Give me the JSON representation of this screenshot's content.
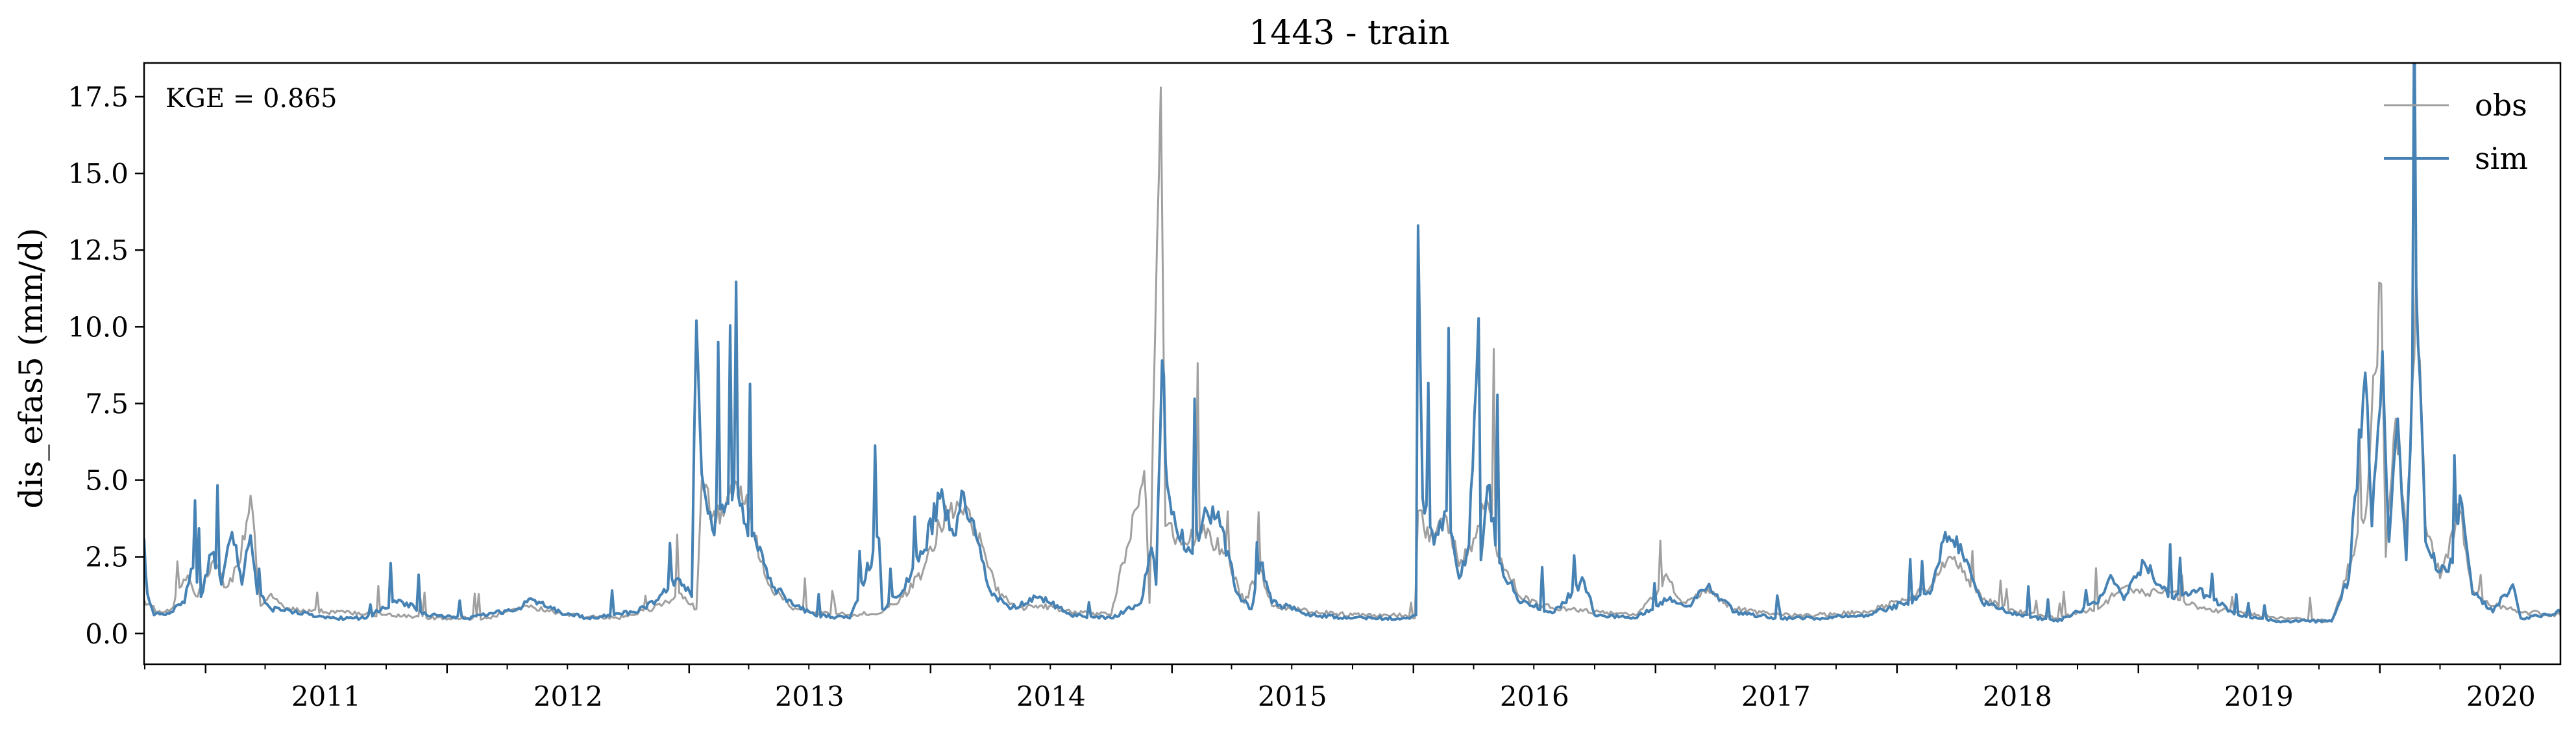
{
  "chart_data": {
    "type": "line",
    "title": "1443 - train",
    "xlabel": "",
    "ylabel": "dis_efas5 (mm/d)",
    "xlim": [
      "2010-09-30",
      "2020-09-30"
    ],
    "ylim": [
      -1.0,
      18.6
    ],
    "yticks": [
      "0.0",
      "2.5",
      "5.0",
      "7.5",
      "10.0",
      "12.5",
      "15.0",
      "17.5"
    ],
    "xticks": [
      "2011",
      "2012",
      "2013",
      "2014",
      "2015",
      "2016",
      "2017",
      "2018",
      "2019",
      "2020"
    ],
    "grid": false,
    "legend_position": "top-right",
    "annotation": "KGE = 0.865",
    "series": [
      {
        "name": "obs",
        "color": "#a0a0a0",
        "points": [
          [
            "2010-09-30",
            1.1
          ],
          [
            "2010-10-20",
            0.7
          ],
          [
            "2010-11-10",
            0.8
          ],
          [
            "2010-12-05",
            1.9
          ],
          [
            "2010-12-20",
            1.2
          ],
          [
            "2011-01-10",
            2.3
          ],
          [
            "2011-02-01",
            1.5
          ],
          [
            "2011-02-20",
            2.2
          ],
          [
            "2011-03-10",
            4.5
          ],
          [
            "2011-03-25",
            0.9
          ],
          [
            "2011-04-10",
            1.3
          ],
          [
            "2011-05-01",
            0.8
          ],
          [
            "2011-07-01",
            0.7
          ],
          [
            "2011-10-01",
            0.6
          ],
          [
            "2011-12-01",
            0.5
          ],
          [
            "2012-03-01",
            0.5
          ],
          [
            "2012-05-01",
            0.9
          ],
          [
            "2012-07-01",
            0.6
          ],
          [
            "2012-09-15",
            0.5
          ],
          [
            "2012-11-20",
            0.9
          ],
          [
            "2012-12-20",
            1.3
          ],
          [
            "2013-01-12",
            0.8
          ],
          [
            "2013-01-20",
            5.0
          ],
          [
            "2013-02-05",
            3.8
          ],
          [
            "2013-02-25",
            4.1
          ],
          [
            "2013-03-20",
            4.8
          ],
          [
            "2013-04-10",
            3.2
          ],
          [
            "2013-05-01",
            1.6
          ],
          [
            "2013-06-01",
            0.9
          ],
          [
            "2013-07-01",
            0.7
          ],
          [
            "2013-09-01",
            0.6
          ],
          [
            "2013-10-20",
            0.7
          ],
          [
            "2013-11-20",
            1.2
          ],
          [
            "2013-12-20",
            2.0
          ],
          [
            "2014-01-15",
            3.5
          ],
          [
            "2014-02-10",
            4.3
          ],
          [
            "2014-03-10",
            3.4
          ],
          [
            "2014-04-10",
            1.4
          ],
          [
            "2014-05-10",
            0.8
          ],
          [
            "2014-06-15",
            0.9
          ],
          [
            "2014-08-01",
            0.7
          ],
          [
            "2014-10-01",
            0.6
          ],
          [
            "2014-11-20",
            5.3
          ],
          [
            "2014-11-28",
            1.0
          ],
          [
            "2014-12-15",
            17.8
          ],
          [
            "2014-12-22",
            3.5
          ],
          [
            "2015-01-15",
            2.9
          ],
          [
            "2015-02-15",
            3.3
          ],
          [
            "2015-03-20",
            2.6
          ],
          [
            "2015-04-20",
            1.0
          ],
          [
            "2015-05-15",
            2.1
          ],
          [
            "2015-06-01",
            0.9
          ],
          [
            "2015-08-01",
            0.7
          ],
          [
            "2015-10-01",
            0.6
          ],
          [
            "2015-12-20",
            0.6
          ],
          [
            "2016-01-03",
            0.5
          ],
          [
            "2016-01-08",
            4.0
          ],
          [
            "2016-01-25",
            3.0
          ],
          [
            "2016-02-20",
            3.8
          ],
          [
            "2016-03-10",
            2.2
          ],
          [
            "2016-04-01",
            3.1
          ],
          [
            "2016-04-20",
            4.4
          ],
          [
            "2016-05-10",
            2.5
          ],
          [
            "2016-06-10",
            1.2
          ],
          [
            "2016-08-01",
            0.8
          ],
          [
            "2016-10-01",
            0.7
          ],
          [
            "2016-12-01",
            0.6
          ],
          [
            "2017-01-20",
            1.8
          ],
          [
            "2017-02-10",
            1.0
          ],
          [
            "2017-03-15",
            1.4
          ],
          [
            "2017-05-01",
            0.8
          ],
          [
            "2017-07-01",
            0.6
          ],
          [
            "2017-09-01",
            0.6
          ],
          [
            "2017-11-15",
            0.7
          ],
          [
            "2018-01-15",
            1.1
          ],
          [
            "2018-02-20",
            1.5
          ],
          [
            "2018-03-20",
            2.5
          ],
          [
            "2018-04-10",
            2.0
          ],
          [
            "2018-05-10",
            1.1
          ],
          [
            "2018-07-01",
            0.7
          ],
          [
            "2018-09-01",
            0.5
          ],
          [
            "2018-11-01",
            0.8
          ],
          [
            "2018-12-10",
            1.5
          ],
          [
            "2019-01-15",
            1.3
          ],
          [
            "2019-02-15",
            1.4
          ],
          [
            "2019-04-01",
            0.8
          ],
          [
            "2019-06-01",
            0.7
          ],
          [
            "2019-08-01",
            0.5
          ],
          [
            "2019-10-20",
            0.4
          ],
          [
            "2019-11-20",
            2.5
          ],
          [
            "2019-12-10",
            3.8
          ],
          [
            "2020-01-03",
            11.4
          ],
          [
            "2020-01-10",
            2.5
          ],
          [
            "2020-01-25",
            7.0
          ],
          [
            "2020-02-10",
            3.0
          ],
          [
            "2020-02-25",
            11.6
          ],
          [
            "2020-03-10",
            3.5
          ],
          [
            "2020-04-01",
            1.8
          ],
          [
            "2020-05-01",
            4.0
          ],
          [
            "2020-05-20",
            1.4
          ],
          [
            "2020-06-20",
            0.9
          ],
          [
            "2020-08-01",
            0.7
          ],
          [
            "2020-09-30",
            0.6
          ]
        ]
      },
      {
        "name": "sim",
        "color": "#4682b4",
        "points": [
          [
            "2010-09-30",
            3.1
          ],
          [
            "2010-10-05",
            1.3
          ],
          [
            "2010-10-15",
            0.6
          ],
          [
            "2010-11-10",
            0.7
          ],
          [
            "2010-11-30",
            1.0
          ],
          [
            "2010-12-10",
            2.1
          ],
          [
            "2010-12-25",
            1.2
          ],
          [
            "2011-01-10",
            2.6
          ],
          [
            "2011-01-25",
            1.6
          ],
          [
            "2011-02-10",
            3.3
          ],
          [
            "2011-02-25",
            1.6
          ],
          [
            "2011-03-10",
            3.2
          ],
          [
            "2011-03-20",
            1.3
          ],
          [
            "2011-04-10",
            0.8
          ],
          [
            "2011-05-15",
            0.7
          ],
          [
            "2011-07-01",
            0.5
          ],
          [
            "2011-09-01",
            0.5
          ],
          [
            "2011-10-20",
            1.1
          ],
          [
            "2011-12-01",
            0.6
          ],
          [
            "2012-02-01",
            0.5
          ],
          [
            "2012-04-15",
            0.8
          ],
          [
            "2012-05-10",
            1.1
          ],
          [
            "2012-06-20",
            0.7
          ],
          [
            "2012-08-01",
            0.5
          ],
          [
            "2012-10-10",
            0.7
          ],
          [
            "2012-11-15",
            1.1
          ],
          [
            "2012-12-15",
            1.8
          ],
          [
            "2013-01-05",
            1.2
          ],
          [
            "2013-01-12",
            10.2
          ],
          [
            "2013-01-20",
            5.2
          ],
          [
            "2013-02-05",
            3.4
          ],
          [
            "2013-02-20",
            4.2
          ],
          [
            "2013-03-10",
            4.9
          ],
          [
            "2013-03-25",
            3.6
          ],
          [
            "2013-04-15",
            2.7
          ],
          [
            "2013-05-10",
            1.5
          ],
          [
            "2013-06-10",
            0.9
          ],
          [
            "2013-07-10",
            0.6
          ],
          [
            "2013-09-01",
            0.5
          ],
          [
            "2013-10-15",
            3.1
          ],
          [
            "2013-10-20",
            0.8
          ],
          [
            "2013-11-20",
            1.4
          ],
          [
            "2013-12-20",
            2.6
          ],
          [
            "2014-01-15",
            4.4
          ],
          [
            "2014-02-05",
            3.2
          ],
          [
            "2014-02-20",
            4.6
          ],
          [
            "2014-03-10",
            3.2
          ],
          [
            "2014-04-01",
            1.4
          ],
          [
            "2014-05-01",
            0.8
          ],
          [
            "2014-06-15",
            1.2
          ],
          [
            "2014-08-01",
            0.6
          ],
          [
            "2014-10-01",
            0.5
          ],
          [
            "2014-11-15",
            1.0
          ],
          [
            "2014-12-01",
            2.8
          ],
          [
            "2014-12-08",
            1.6
          ],
          [
            "2014-12-17",
            8.9
          ],
          [
            "2014-12-25",
            4.8
          ],
          [
            "2015-01-10",
            3.2
          ],
          [
            "2015-02-01",
            2.6
          ],
          [
            "2015-02-20",
            4.1
          ],
          [
            "2015-03-15",
            3.5
          ],
          [
            "2015-04-10",
            1.3
          ],
          [
            "2015-05-01",
            0.8
          ],
          [
            "2015-05-15",
            2.3
          ],
          [
            "2015-06-01",
            1.0
          ],
          [
            "2015-08-01",
            0.6
          ],
          [
            "2015-10-01",
            0.5
          ],
          [
            "2015-12-20",
            0.5
          ],
          [
            "2016-01-05",
            0.6
          ],
          [
            "2016-01-08",
            13.3
          ],
          [
            "2016-01-15",
            4.4
          ],
          [
            "2016-02-01",
            2.9
          ],
          [
            "2016-02-20",
            4.0
          ],
          [
            "2016-03-10",
            1.8
          ],
          [
            "2016-03-25",
            2.9
          ],
          [
            "2016-04-05",
            8.2
          ],
          [
            "2016-04-12",
            2.4
          ],
          [
            "2016-04-22",
            4.8
          ],
          [
            "2016-05-10",
            2.3
          ],
          [
            "2016-06-10",
            1.0
          ],
          [
            "2016-08-01",
            0.7
          ],
          [
            "2016-09-15",
            1.7
          ],
          [
            "2016-10-01",
            0.6
          ],
          [
            "2016-12-01",
            0.5
          ],
          [
            "2017-01-20",
            1.1
          ],
          [
            "2017-02-20",
            0.9
          ],
          [
            "2017-03-20",
            1.5
          ],
          [
            "2017-05-01",
            0.7
          ],
          [
            "2017-07-01",
            0.5
          ],
          [
            "2017-09-01",
            0.5
          ],
          [
            "2017-11-15",
            0.6
          ],
          [
            "2018-01-15",
            1.0
          ],
          [
            "2018-02-20",
            1.3
          ],
          [
            "2018-03-15",
            3.3
          ],
          [
            "2018-04-10",
            2.6
          ],
          [
            "2018-05-10",
            1.0
          ],
          [
            "2018-07-01",
            0.6
          ],
          [
            "2018-09-01",
            0.4
          ],
          [
            "2018-11-01",
            1.0
          ],
          [
            "2018-11-20",
            1.9
          ],
          [
            "2018-12-10",
            1.1
          ],
          [
            "2019-01-10",
            2.3
          ],
          [
            "2019-02-15",
            1.2
          ],
          [
            "2019-04-01",
            1.4
          ],
          [
            "2019-06-01",
            0.6
          ],
          [
            "2019-08-01",
            0.4
          ],
          [
            "2019-10-20",
            0.4
          ],
          [
            "2019-11-15",
            1.8
          ],
          [
            "2019-12-10",
            8.5
          ],
          [
            "2019-12-20",
            3.5
          ],
          [
            "2020-01-05",
            9.2
          ],
          [
            "2020-01-15",
            3.0
          ],
          [
            "2020-01-28",
            7.0
          ],
          [
            "2020-02-10",
            2.4
          ],
          [
            "2020-02-25",
            11.3
          ],
          [
            "2020-03-10",
            3.0
          ],
          [
            "2020-04-01",
            2.0
          ],
          [
            "2020-04-20",
            2.3
          ],
          [
            "2020-05-01",
            4.5
          ],
          [
            "2020-05-20",
            1.3
          ],
          [
            "2020-06-20",
            0.7
          ],
          [
            "2020-07-20",
            1.6
          ],
          [
            "2020-08-01",
            0.5
          ],
          [
            "2020-09-10",
            0.6
          ],
          [
            "2020-09-30",
            0.7
          ]
        ]
      }
    ]
  }
}
